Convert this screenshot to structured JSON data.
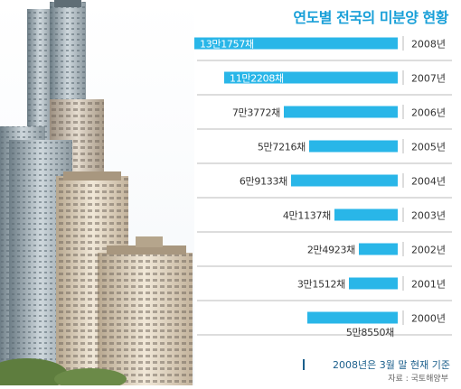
{
  "title": "연도별 전국의 미분양 현황",
  "note": "2008년은 3월 말 현재 기준",
  "source": "자료 : 국토해양부",
  "colors": {
    "bar": "#29b6e8",
    "bar_label_light": "#ffffff",
    "bar_label_dark": "#333333",
    "title": "#1aa0d8",
    "divider": "#bbbbbb"
  },
  "chart_data": {
    "type": "bar",
    "orientation": "horizontal",
    "categories": [
      "2008년",
      "2007년",
      "2006년",
      "2005년",
      "2004년",
      "2003년",
      "2002년",
      "2001년",
      "2000년"
    ],
    "values": [
      131757,
      112208,
      73772,
      57216,
      69133,
      41137,
      24923,
      31512,
      58550
    ],
    "value_labels": [
      "13만1757채",
      "11만2208채",
      "7만3772채",
      "5만7216채",
      "6만9133채",
      "4만1137채",
      "2만4923채",
      "3만1512채",
      "5만8550채"
    ],
    "unit": "채",
    "title": "연도별 전국의 미분양 현황"
  }
}
